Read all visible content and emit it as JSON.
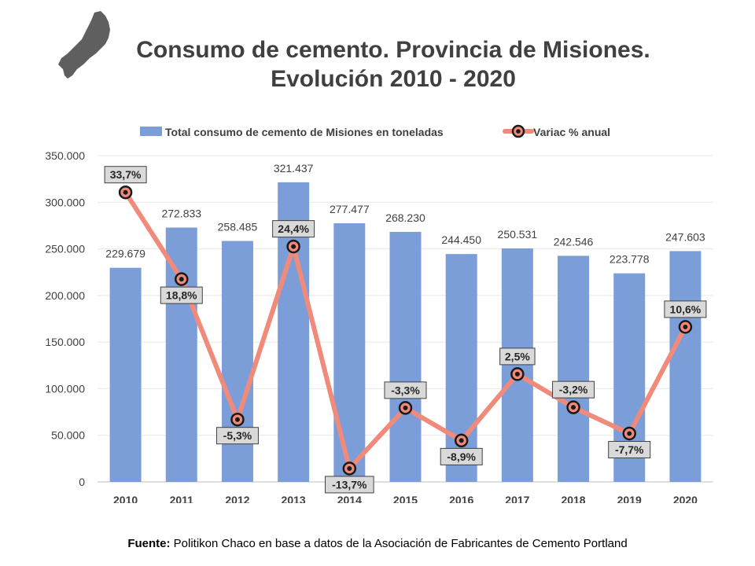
{
  "header": {
    "title_line1": "Consumo de cemento. Provincia de Misiones.",
    "title_line2": "Evolución 2010 - 2020"
  },
  "logo": {
    "icon": "misiones-province-map-icon",
    "color": "#5f5f5f"
  },
  "footer": {
    "label": "Fuente:",
    "text": " Politikon Chaco en base a datos de la Asociación de Fabricantes de Cemento Portland"
  },
  "chart_data": {
    "type": "bar",
    "categories": [
      "2010",
      "2011",
      "2012",
      "2013",
      "2014",
      "2015",
      "2016",
      "2017",
      "2018",
      "2019",
      "2020"
    ],
    "series": [
      {
        "name": "Total consumo de cemento de Misiones en toneladas",
        "type": "bar",
        "color": "#7b9ed9",
        "values": [
          229679,
          272833,
          258485,
          321437,
          277477,
          268230,
          244450,
          250531,
          242546,
          223778,
          247603
        ],
        "labels": [
          "229.679",
          "272.833",
          "258.485",
          "321.437",
          "277.477",
          "268.230",
          "244.450",
          "250.531",
          "242.546",
          "223.778",
          "247.603"
        ]
      },
      {
        "name": "Variac % anual",
        "type": "line",
        "color": "#f08a7a",
        "values": [
          33.7,
          18.8,
          -5.3,
          24.4,
          -13.7,
          -3.3,
          -8.9,
          2.5,
          -3.2,
          -7.7,
          10.6
        ],
        "labels": [
          "33,7%",
          "18,8%",
          "-5,3%",
          "24,4%",
          "-13,7%",
          "-3,3%",
          "-8,9%",
          "2,5%",
          "-3,2%",
          "-7,7%",
          "10,6%"
        ]
      }
    ],
    "y_ticks": [
      "0",
      "50.000",
      "100.000",
      "150.000",
      "200.000",
      "250.000",
      "300.000",
      "350.000"
    ],
    "ylim": [
      0,
      350000
    ],
    "y_secondary_range": [
      -16,
      40
    ],
    "grid": true,
    "legend_position": "top"
  }
}
